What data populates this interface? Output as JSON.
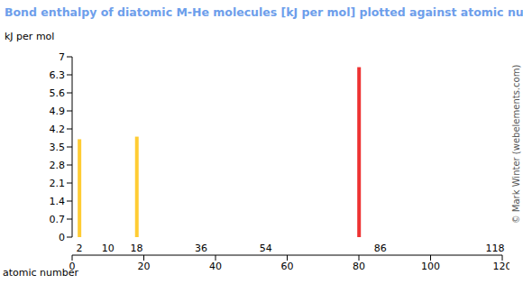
{
  "chart_data": {
    "type": "bar",
    "title": "Bond enthalpy of diatomic M-He molecules [kJ per mol] plotted against atomic number",
    "y_label": "kJ per mol",
    "x_label": "atomic number",
    "annotations": [
      "© Mark Winter (webelements.com)"
    ],
    "x": [
      2,
      18,
      80
    ],
    "values": [
      3.8,
      3.9,
      6.6
    ],
    "colors": [
      "#ffcc33",
      "#ffcc33",
      "#ee3333"
    ],
    "xlim": [
      0,
      120
    ],
    "xticks": [
      0,
      20,
      40,
      60,
      80,
      100,
      120
    ],
    "x2lim": [
      0,
      120
    ],
    "x2ticks": [
      2,
      10,
      18,
      36,
      54,
      86,
      118
    ],
    "ylim": [
      0,
      7
    ],
    "yticks": [
      0,
      0.7,
      1.4,
      2.1,
      2.8,
      3.5,
      4.2,
      4.9,
      5.6,
      6.3,
      7
    ],
    "grid": false
  }
}
